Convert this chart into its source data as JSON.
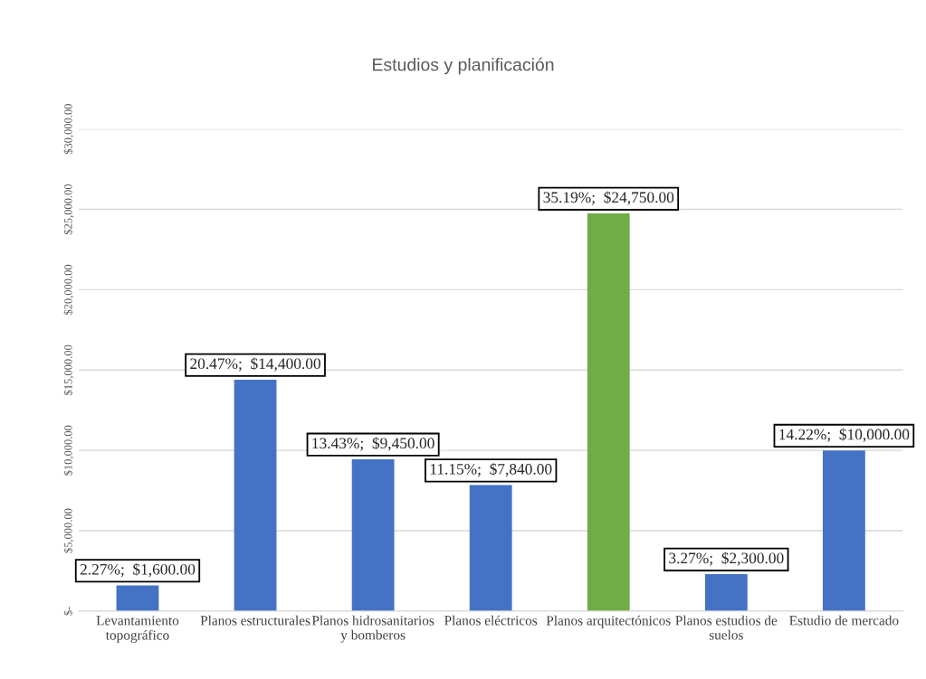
{
  "chart_data": {
    "type": "bar",
    "title": "Estudios y planificación",
    "categories": [
      "Levantamiento\ntopográfico",
      "Planos estructurales",
      "Planos hidrosanitarios\ny bomberos",
      "Planos eléctricos",
      "Planos arquitectónicos",
      "Planos estudios de\nsuelos",
      "Estudio de mercado"
    ],
    "values": [
      1600,
      14400,
      9450,
      7840,
      24750,
      2300,
      10000
    ],
    "colors": [
      "#4472c4",
      "#4472c4",
      "#4472c4",
      "#4472c4",
      "#70ad47",
      "#4472c4",
      "#4472c4"
    ],
    "value_labels": [
      "2.27%;  $1,600.00",
      "20.47%;  $14,400.00",
      "13.43%;  $9,450.00",
      "11.15%;  $7,840.00",
      "35.19%;  $24,750.00",
      "3.27%;  $2,300.00",
      "14.22%;  $10,000.00"
    ],
    "ylim": [
      0,
      30000
    ],
    "yticks": [
      {
        "value": 0,
        "label": "$-"
      },
      {
        "value": 5000,
        "label": "$5,000.00"
      },
      {
        "value": 10000,
        "label": "$10,000.00"
      },
      {
        "value": 15000,
        "label": "$15,000.00"
      },
      {
        "value": 20000,
        "label": "$20,000.00"
      },
      {
        "value": 25000,
        "label": "$25,000.00"
      },
      {
        "value": 30000,
        "label": "$30,000.00"
      }
    ],
    "grid": "y",
    "legend": false
  }
}
